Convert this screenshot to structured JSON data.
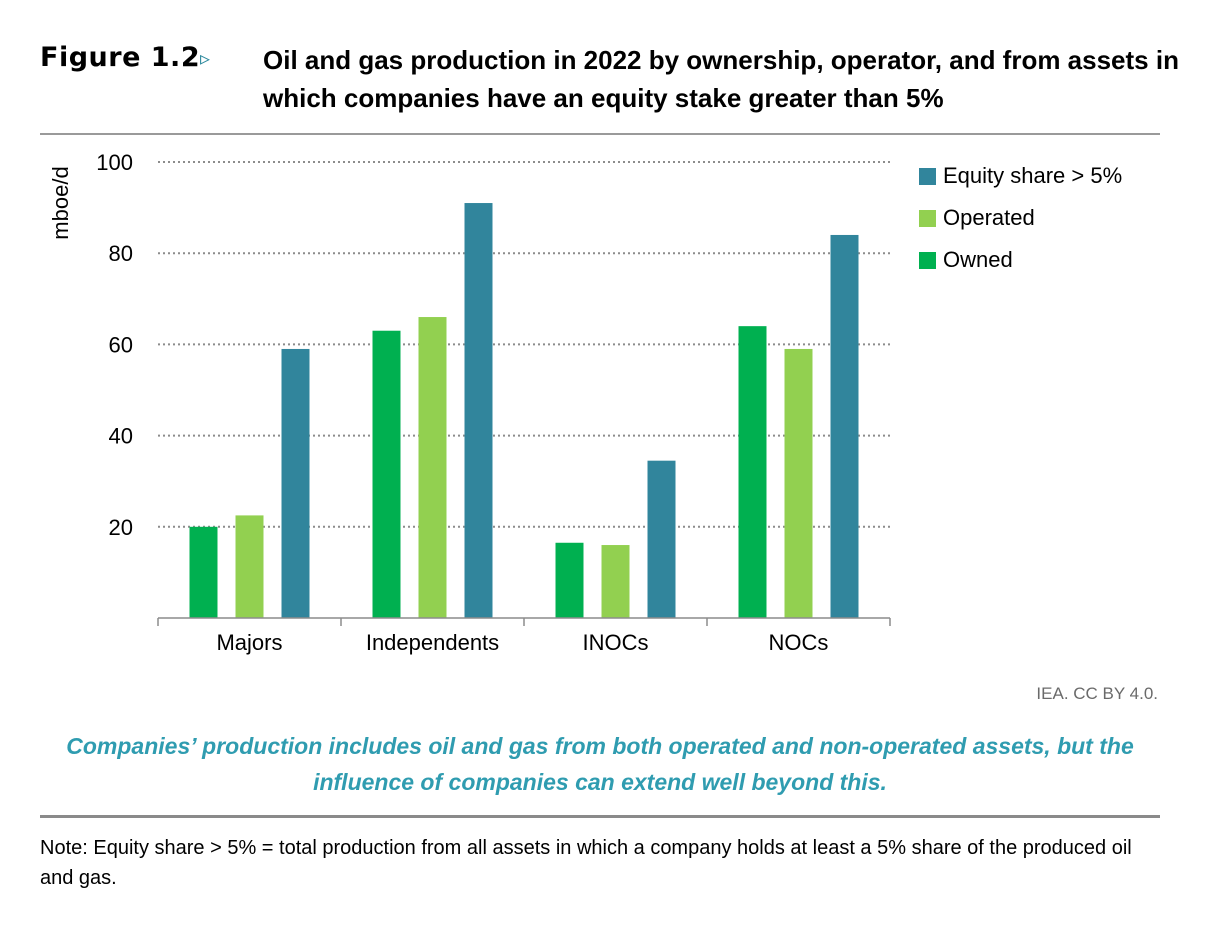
{
  "figure": {
    "label": "Figure 1.2",
    "arrow": "▹",
    "title": "Oil and gas production in 2022 by ownership, operator, and from assets in which companies have an equity stake greater than 5%"
  },
  "credit": "IEA. CC BY 4.0.",
  "takeaway": "Companies’ production includes oil and gas from both operated and non-operated assets, but the influence of companies can extend well beyond this.",
  "note": "Note: Equity share > 5% = total production from all assets in which a company holds at least a 5% share of the produced oil and gas.",
  "colors": {
    "owned": "#00b050",
    "operated": "#92d050",
    "equity": "#31859c",
    "grid": "#8c8c8c",
    "axis": "#8c8c8c"
  },
  "chart_data": {
    "type": "bar",
    "title": "Oil and gas production in 2022 by ownership, operator, and from assets in which companies have an equity stake greater than 5%",
    "ylabel": "mboe/d",
    "xlabel": "",
    "ylim": [
      0,
      100
    ],
    "yticks": [
      20,
      40,
      60,
      80,
      100
    ],
    "grid": true,
    "legend_position": "top-right",
    "categories": [
      "Majors",
      "Independents",
      "INOCs",
      "NOCs"
    ],
    "series": [
      {
        "name": "Owned",
        "color": "#00b050",
        "values": [
          20,
          63,
          16.5,
          64
        ]
      },
      {
        "name": "Operated",
        "color": "#92d050",
        "values": [
          22.5,
          66,
          16,
          59
        ]
      },
      {
        "name": "Equity share > 5%",
        "color": "#31859c",
        "values": [
          59,
          91,
          34.5,
          84
        ]
      }
    ],
    "legend_order": [
      "Equity share > 5%",
      "Operated",
      "Owned"
    ]
  }
}
